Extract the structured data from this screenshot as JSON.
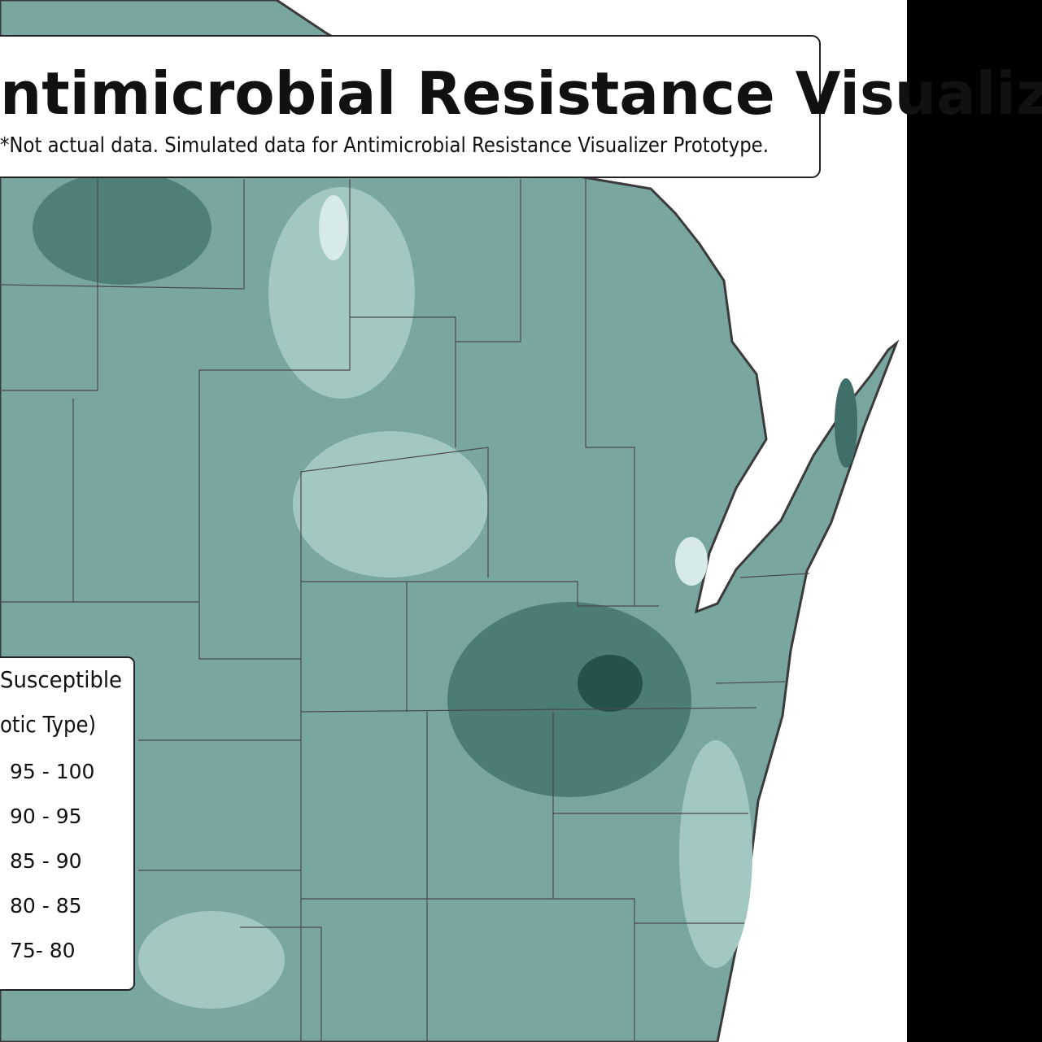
{
  "title": "ntimicrobial Resistance Visualizer",
  "subtitle": "*Not actual data. Simulated data for Antimicrobial Resistance Visualizer Prototype.",
  "legend": {
    "title_line1": "Susceptible",
    "title_line2": "otic Type)",
    "items": [
      "95 - 100",
      "90 - 95",
      "85 - 90",
      "80 - 85",
      "75- 80"
    ]
  }
}
